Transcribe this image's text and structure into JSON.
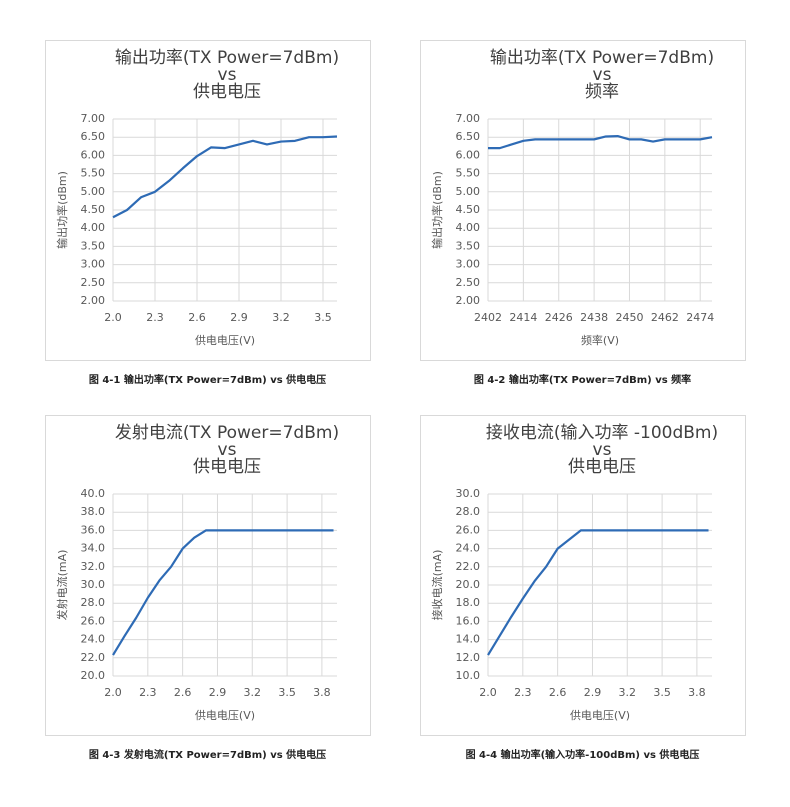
{
  "chart_data": [
    {
      "type": "line",
      "title": [
        "输出功率(TX Power=7dBm)",
        "vs",
        "供电电压"
      ],
      "xlabel": "供电电压(V)",
      "ylabel": "输出功率(dBm)",
      "caption": "图 4-1  输出功率(TX Power=7dBm) vs 供电电压",
      "x": [
        2.0,
        2.1,
        2.2,
        2.3,
        2.4,
        2.5,
        2.6,
        2.7,
        2.8,
        2.9,
        3.0,
        3.1,
        3.2,
        3.3,
        3.4,
        3.5,
        3.6
      ],
      "series": [
        {
          "name": "输出功率",
          "color": "#2e6bb5",
          "values": [
            4.3,
            4.5,
            4.85,
            5.0,
            5.3,
            5.65,
            5.98,
            6.22,
            6.2,
            6.3,
            6.4,
            6.3,
            6.38,
            6.4,
            6.5,
            6.5,
            6.52
          ]
        }
      ],
      "xlim": [
        2.0,
        3.6
      ],
      "xticks": [
        {
          "value": 2,
          "label": "2.0"
        },
        2.3,
        2.6,
        2.9,
        3.2,
        3.5
      ],
      "ylim": [
        2,
        7
      ],
      "yticks": [
        {
          "value": 2,
          "label": "2.00"
        },
        {
          "value": 2.5,
          "label": "2.50"
        },
        {
          "value": 3,
          "label": "3.00"
        },
        {
          "value": 3.5,
          "label": "3.50"
        },
        {
          "value": 4,
          "label": "4.00"
        },
        {
          "value": 4.5,
          "label": "4.50"
        },
        {
          "value": 5,
          "label": "5.00"
        },
        {
          "value": 5.5,
          "label": "5.50"
        },
        {
          "value": 6,
          "label": "6.00"
        },
        {
          "value": 6.5,
          "label": "6.50"
        },
        {
          "value": 7,
          "label": "7.00"
        }
      ],
      "grid": true
    },
    {
      "type": "line",
      "title": [
        "输出功率(TX Power=7dBm)",
        "vs",
        "频率"
      ],
      "xlabel": "频率(V)",
      "ylabel": "输出功率(dBm)",
      "caption": "图 4-2  输出功率(TX Power=7dBm) vs 频率",
      "x": [
        2402,
        2406,
        2410,
        2414,
        2418,
        2422,
        2426,
        2430,
        2434,
        2438,
        2442,
        2446,
        2450,
        2454,
        2458,
        2462,
        2466,
        2470,
        2474,
        2478
      ],
      "series": [
        {
          "name": "输出功率",
          "color": "#2e6bb5",
          "values": [
            6.2,
            6.2,
            6.3,
            6.4,
            6.44,
            6.44,
            6.44,
            6.44,
            6.44,
            6.44,
            6.52,
            6.53,
            6.44,
            6.44,
            6.38,
            6.44,
            6.44,
            6.44,
            6.44,
            6.5
          ]
        }
      ],
      "xlim": [
        2402,
        2478
      ],
      "xticks": [
        2402,
        2414,
        2426,
        2438,
        2450,
        2462,
        2474
      ],
      "ylim": [
        2,
        7
      ],
      "yticks": [
        {
          "value": 2,
          "label": "2.00"
        },
        {
          "value": 2.5,
          "label": "2.50"
        },
        {
          "value": 3,
          "label": "3.00"
        },
        {
          "value": 3.5,
          "label": "3.50"
        },
        {
          "value": 4,
          "label": "4.00"
        },
        {
          "value": 4.5,
          "label": "4.50"
        },
        {
          "value": 5,
          "label": "5.00"
        },
        {
          "value": 5.5,
          "label": "5.50"
        },
        {
          "value": 6,
          "label": "6.00"
        },
        {
          "value": 6.5,
          "label": "6.50"
        },
        {
          "value": 7,
          "label": "7.00"
        }
      ],
      "grid": true
    },
    {
      "type": "line",
      "title": [
        "发射电流(TX Power=7dBm)",
        "vs",
        "供电电压"
      ],
      "xlabel": "供电电压(V)",
      "ylabel": "发射电流(mA)",
      "caption": "图 4-3  发射电流(TX Power=7dBm) vs 供电电压",
      "x": [
        2.0,
        2.1,
        2.2,
        2.3,
        2.4,
        2.5,
        2.6,
        2.7,
        2.8,
        2.9,
        3.0,
        3.1,
        3.2,
        3.3,
        3.4,
        3.5,
        3.6,
        3.7,
        3.8,
        3.9
      ],
      "series": [
        {
          "name": "发射电流",
          "color": "#2e6bb5",
          "values": [
            22.3,
            24.4,
            26.4,
            28.6,
            30.5,
            32.0,
            34.0,
            35.2,
            36.0,
            36.0,
            36.0,
            36.0,
            36.0,
            36.0,
            36.0,
            36.0,
            36.0,
            36.0,
            36.0,
            36.0
          ]
        }
      ],
      "xlim": [
        2.0,
        3.93
      ],
      "xticks": [
        {
          "value": 2,
          "label": "2.0"
        },
        2.3,
        2.6,
        2.9,
        3.2,
        3.5,
        3.8
      ],
      "ylim": [
        20,
        40
      ],
      "yticks": [
        {
          "value": 20,
          "label": "20.0"
        },
        {
          "value": 22,
          "label": "22.0"
        },
        {
          "value": 24,
          "label": "24.0"
        },
        {
          "value": 26,
          "label": "26.0"
        },
        {
          "value": 28,
          "label": "28.0"
        },
        {
          "value": 30,
          "label": "30.0"
        },
        {
          "value": 32,
          "label": "32.0"
        },
        {
          "value": 34,
          "label": "34.0"
        },
        {
          "value": 36,
          "label": "36.0"
        },
        {
          "value": 38,
          "label": "38.0"
        },
        {
          "value": 40,
          "label": "40.0"
        }
      ],
      "grid": true
    },
    {
      "type": "line",
      "title": [
        "接收电流(输入功率 -100dBm)",
        "vs",
        "供电电压"
      ],
      "xlabel": "供电电压(V)",
      "ylabel": "接收电流(mA)",
      "caption": "图 4-4  输出功率(输入功率-100dBm) vs 供电电压",
      "x": [
        2.0,
        2.1,
        2.2,
        2.3,
        2.4,
        2.5,
        2.6,
        2.7,
        2.8,
        2.9,
        3.0,
        3.1,
        3.2,
        3.3,
        3.4,
        3.5,
        3.6,
        3.7,
        3.8,
        3.9
      ],
      "series": [
        {
          "name": "接收电流",
          "color": "#2e6bb5",
          "values": [
            12.3,
            14.4,
            16.5,
            18.5,
            20.4,
            22.0,
            24.0,
            25.0,
            26.0,
            26.0,
            26.0,
            26.0,
            26.0,
            26.0,
            26.0,
            26.0,
            26.0,
            26.0,
            26.0,
            26.0
          ]
        }
      ],
      "xlim": [
        2.0,
        3.93
      ],
      "xticks": [
        {
          "value": 2,
          "label": "2.0"
        },
        2.3,
        2.6,
        2.9,
        3.2,
        3.5,
        3.8
      ],
      "ylim": [
        10,
        30
      ],
      "yticks": [
        {
          "value": 10,
          "label": "10.0"
        },
        {
          "value": 12,
          "label": "12.0"
        },
        {
          "value": 14,
          "label": "14.0"
        },
        {
          "value": 16,
          "label": "16.0"
        },
        {
          "value": 18,
          "label": "18.0"
        },
        {
          "value": 20,
          "label": "20.0"
        },
        {
          "value": 22,
          "label": "22.0"
        },
        {
          "value": 24,
          "label": "24.0"
        },
        {
          "value": 26,
          "label": "26.0"
        },
        {
          "value": 28,
          "label": "28.0"
        },
        {
          "value": 30,
          "label": "30.0"
        }
      ],
      "grid": true
    }
  ]
}
